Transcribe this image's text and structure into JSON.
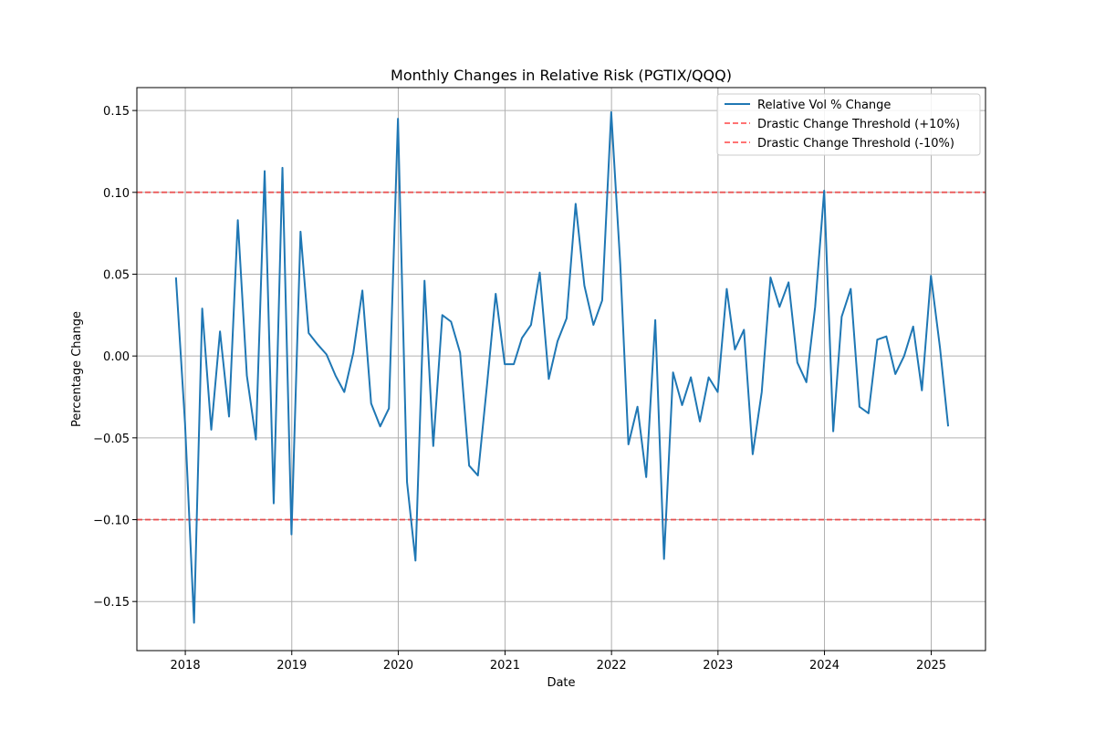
{
  "chart_data": {
    "type": "line",
    "title": "Monthly Changes in Relative Risk (PGTIX/QQQ)",
    "xlabel": "Date",
    "ylabel": "Percentage Change",
    "xlim": [
      "2017-07-19",
      "2025-07-06"
    ],
    "ylim": [
      -0.18,
      0.164
    ],
    "x_ticks": [
      "2018",
      "2019",
      "2020",
      "2021",
      "2022",
      "2023",
      "2024",
      "2025"
    ],
    "y_ticks": [
      "0.15",
      "0.10",
      "0.05",
      "0.00",
      "−0.05",
      "−0.10",
      "−0.15"
    ],
    "grid": true,
    "legend_position": "top-right",
    "series": [
      {
        "name": "Relative Vol % Change",
        "color": "#1f77b4",
        "style": "solid",
        "x": [
          "2017-11-30",
          "2017-12-31",
          "2018-01-31",
          "2018-02-28",
          "2018-03-31",
          "2018-04-30",
          "2018-05-31",
          "2018-06-30",
          "2018-07-31",
          "2018-08-31",
          "2018-09-30",
          "2018-10-31",
          "2018-11-30",
          "2018-12-31",
          "2019-01-31",
          "2019-02-28",
          "2019-03-31",
          "2019-04-30",
          "2019-05-31",
          "2019-06-30",
          "2019-07-31",
          "2019-08-31",
          "2019-09-30",
          "2019-10-31",
          "2019-11-30",
          "2019-12-31",
          "2020-01-31",
          "2020-02-29",
          "2020-03-31",
          "2020-04-30",
          "2020-05-31",
          "2020-06-30",
          "2020-07-31",
          "2020-08-31",
          "2020-09-30",
          "2020-10-31",
          "2020-11-30",
          "2020-12-31",
          "2021-01-31",
          "2021-02-28",
          "2021-03-31",
          "2021-04-30",
          "2021-05-31",
          "2021-06-30",
          "2021-07-31",
          "2021-08-31",
          "2021-09-30",
          "2021-10-31",
          "2021-11-30",
          "2021-12-31",
          "2022-01-31",
          "2022-02-28",
          "2022-03-31",
          "2022-04-30",
          "2022-05-31",
          "2022-06-30",
          "2022-07-31",
          "2022-08-31",
          "2022-09-30",
          "2022-10-31",
          "2022-11-30",
          "2022-12-31",
          "2023-01-31",
          "2023-02-28",
          "2023-03-31",
          "2023-04-30",
          "2023-05-31",
          "2023-06-30",
          "2023-07-31",
          "2023-08-31",
          "2023-09-30",
          "2023-10-31",
          "2023-11-30",
          "2023-12-31",
          "2024-01-31",
          "2024-02-29",
          "2024-03-31",
          "2024-04-30",
          "2024-05-31",
          "2024-06-30",
          "2024-07-31",
          "2024-08-31",
          "2024-09-30",
          "2024-10-31",
          "2024-11-30",
          "2024-12-31",
          "2025-01-31",
          "2025-02-28"
        ],
        "y": [
          0.048,
          -0.041,
          -0.163,
          0.029,
          -0.045,
          0.015,
          -0.037,
          0.083,
          -0.012,
          -0.051,
          0.113,
          -0.09,
          0.115,
          -0.109,
          0.076,
          0.014,
          0.007,
          0.001,
          -0.012,
          -0.022,
          0.002,
          0.04,
          -0.029,
          -0.043,
          -0.032,
          0.145,
          -0.077,
          -0.125,
          0.046,
          -0.055,
          0.025,
          0.021,
          0.002,
          -0.067,
          -0.073,
          -0.018,
          0.038,
          -0.005,
          -0.005,
          0.011,
          0.019,
          0.051,
          -0.014,
          0.009,
          0.023,
          0.093,
          0.043,
          0.019,
          0.034,
          0.149,
          0.056,
          -0.054,
          -0.031,
          -0.074,
          0.022,
          -0.124,
          -0.01,
          -0.03,
          -0.013,
          -0.04,
          -0.013,
          -0.022,
          0.041,
          0.004,
          0.016,
          -0.06,
          -0.022,
          0.048,
          0.03,
          0.045,
          -0.004,
          -0.016,
          0.03,
          0.101,
          -0.046,
          0.024,
          0.041,
          -0.031,
          -0.035,
          0.01,
          0.012,
          -0.011,
          0.0,
          0.018,
          -0.021,
          0.049,
          0.005,
          -0.043
        ]
      },
      {
        "name": "Drastic Change Threshold (+10%)",
        "color": "#ff0000",
        "style": "dashed",
        "y_const": 0.1
      },
      {
        "name": "Drastic Change Threshold (-10%)",
        "color": "#ff0000",
        "style": "dashed",
        "y_const": -0.1
      }
    ]
  }
}
